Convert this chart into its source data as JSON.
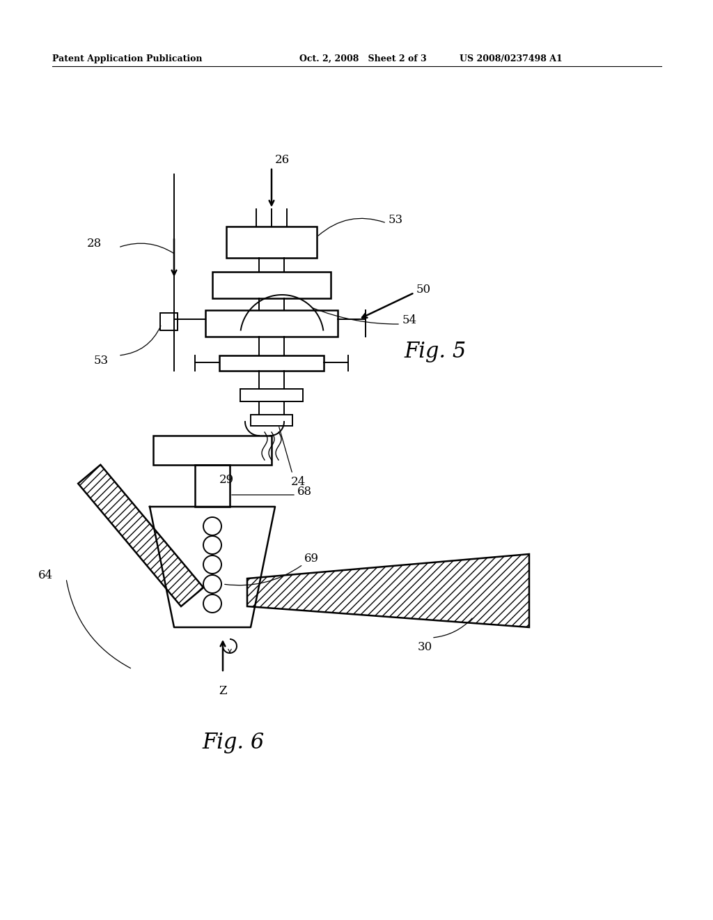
{
  "header_left": "Patent Application Publication",
  "header_mid": "Oct. 2, 2008   Sheet 2 of 3",
  "header_right": "US 2008/0237498 A1",
  "fig5_label": "Fig. 5",
  "fig6_label": "Fig. 6",
  "bg_color": "#ffffff",
  "line_color": "#000000"
}
